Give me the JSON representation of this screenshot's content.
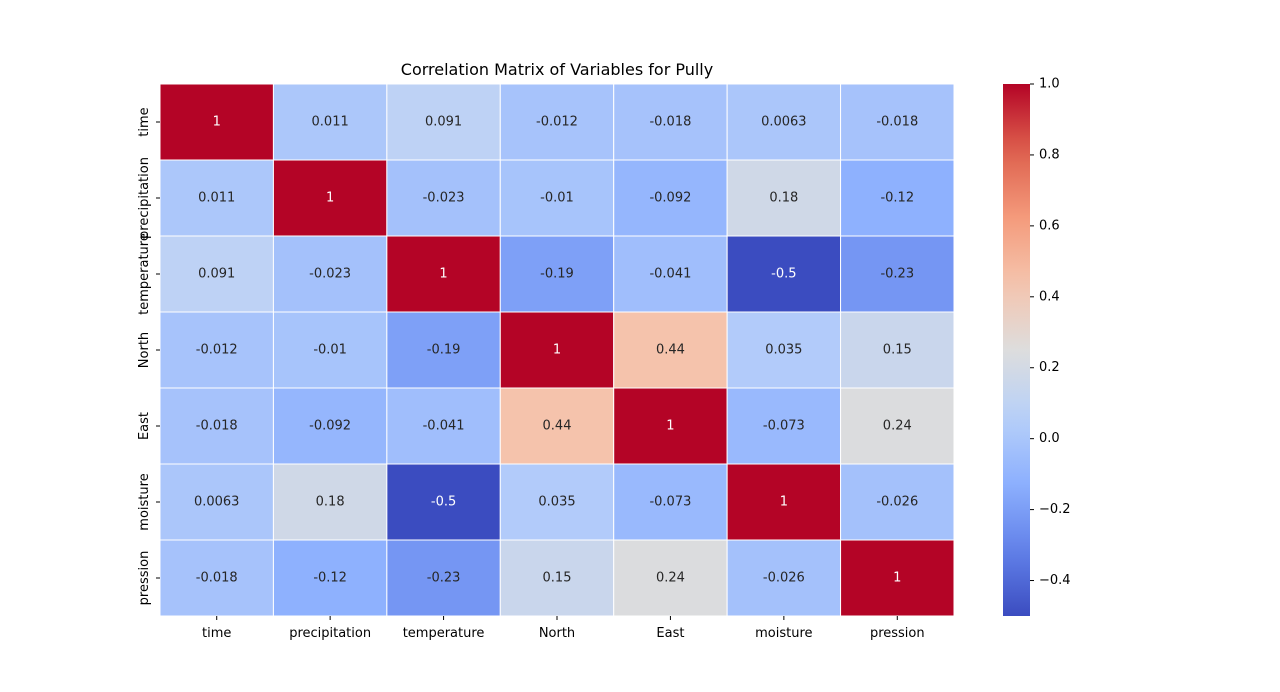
{
  "chart_data": {
    "type": "heatmap",
    "title": "Correlation Matrix of Variables for Pully",
    "xlabel": "",
    "ylabel": "",
    "labels": [
      "time",
      "precipitation",
      "temperature",
      "North",
      "East",
      "moisture",
      "pression"
    ],
    "matrix": [
      [
        1,
        0.011,
        0.091,
        -0.012,
        -0.018,
        0.0063,
        -0.018
      ],
      [
        0.011,
        1,
        -0.023,
        -0.01,
        -0.092,
        0.18,
        -0.12
      ],
      [
        0.091,
        -0.023,
        1,
        -0.19,
        -0.041,
        -0.5,
        -0.23
      ],
      [
        -0.012,
        -0.01,
        -0.19,
        1,
        0.44,
        0.035,
        0.15
      ],
      [
        -0.018,
        -0.092,
        -0.041,
        0.44,
        1,
        -0.073,
        0.24
      ],
      [
        0.0063,
        0.18,
        -0.5,
        0.035,
        -0.073,
        1,
        -0.026
      ],
      [
        -0.018,
        -0.12,
        -0.23,
        0.15,
        0.24,
        -0.026,
        1
      ]
    ],
    "annotations": [
      [
        "1",
        "0.011",
        "0.091",
        "-0.012",
        "-0.018",
        "0.0063",
        "-0.018"
      ],
      [
        "0.011",
        "1",
        "-0.023",
        "-0.01",
        "-0.092",
        "0.18",
        "-0.12"
      ],
      [
        "0.091",
        "-0.023",
        "1",
        "-0.19",
        "-0.041",
        "-0.5",
        "-0.23"
      ],
      [
        "-0.012",
        "-0.01",
        "-0.19",
        "1",
        "0.44",
        "0.035",
        "0.15"
      ],
      [
        "-0.018",
        "-0.092",
        "-0.041",
        "0.44",
        "1",
        "-0.073",
        "0.24"
      ],
      [
        "0.0063",
        "0.18",
        "-0.5",
        "0.035",
        "-0.073",
        "1",
        "-0.026"
      ],
      [
        "-0.018",
        "-0.12",
        "-0.23",
        "0.15",
        "0.24",
        "-0.026",
        "1"
      ]
    ],
    "colormap": "coolwarm",
    "vmin": -0.5,
    "vmax": 1.0,
    "colorbar_ticks": [
      1.0,
      0.8,
      0.6,
      0.4,
      0.2,
      0.0,
      -0.2,
      -0.4
    ],
    "colorbar_tick_labels": [
      "1.0",
      "0.8",
      "0.6",
      "0.4",
      "0.2",
      "0.0",
      "−0.2",
      "−0.4"
    ],
    "colors": {
      "cell_border": "#ffffff",
      "text_dark": "#262626",
      "text_light": "#ffffff",
      "axis": "#000000"
    }
  }
}
